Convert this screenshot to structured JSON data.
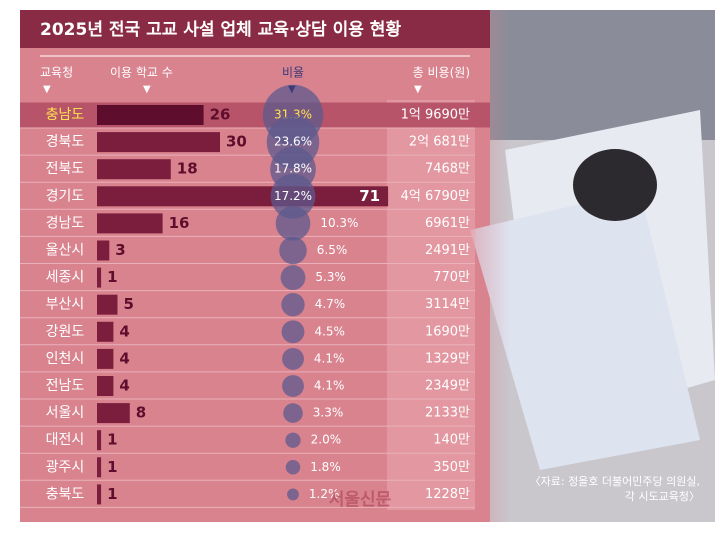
{
  "chart_data": {
    "type": "bar",
    "title": "2025년 전국 고교 사설 업체 교육·상담 이용 현황",
    "column_headers": [
      "교육청",
      "이용 학교 수",
      "비율",
      "총 비용(원)"
    ],
    "categories": [
      "충남도",
      "경북도",
      "전북도",
      "경기도",
      "경남도",
      "울산시",
      "세종시",
      "부산시",
      "강원도",
      "인천시",
      "전남도",
      "서울시",
      "대전시",
      "광주시",
      "충북도"
    ],
    "series": [
      {
        "name": "이용 학교 수",
        "color": "#7b1e3e",
        "values": [
          26,
          30,
          18,
          71,
          16,
          3,
          1,
          5,
          4,
          4,
          4,
          8,
          1,
          1,
          1
        ]
      },
      {
        "name": "비율",
        "color": "#5d5a8e",
        "values": [
          31.3,
          23.6,
          17.8,
          17.2,
          10.3,
          6.5,
          5.3,
          4.7,
          4.5,
          4.1,
          4.1,
          3.3,
          2.0,
          1.8,
          1.2
        ],
        "value_labels": [
          "31.3%",
          "23.6%",
          "17.8%",
          "17.2%",
          "10.3%",
          "6.5%",
          "5.3%",
          "4.7%",
          "4.5%",
          "4.1%",
          "4.1%",
          "3.3%",
          "2.0%",
          "1.8%",
          "1.2%"
        ]
      },
      {
        "name": "총 비용(원)",
        "values": [
          196900000,
          206810000,
          74680000,
          467900000,
          69610000,
          24910000,
          7700000,
          31140000,
          16900000,
          13290000,
          23490000,
          21330000,
          1400000,
          3500000,
          12280000
        ],
        "value_labels": [
          "1억 9690만",
          "2억 681만",
          "7468만",
          "4억 6790만",
          "6961만",
          "2491만",
          "770만",
          "3114만",
          "1690만",
          "1329만",
          "2349만",
          "2133만",
          "140만",
          "350만",
          "1228만"
        ]
      }
    ],
    "source": "〈자료: 정을호 더불어민주당 의원실, 각 시도교육청〉",
    "credit": "서울신문"
  }
}
